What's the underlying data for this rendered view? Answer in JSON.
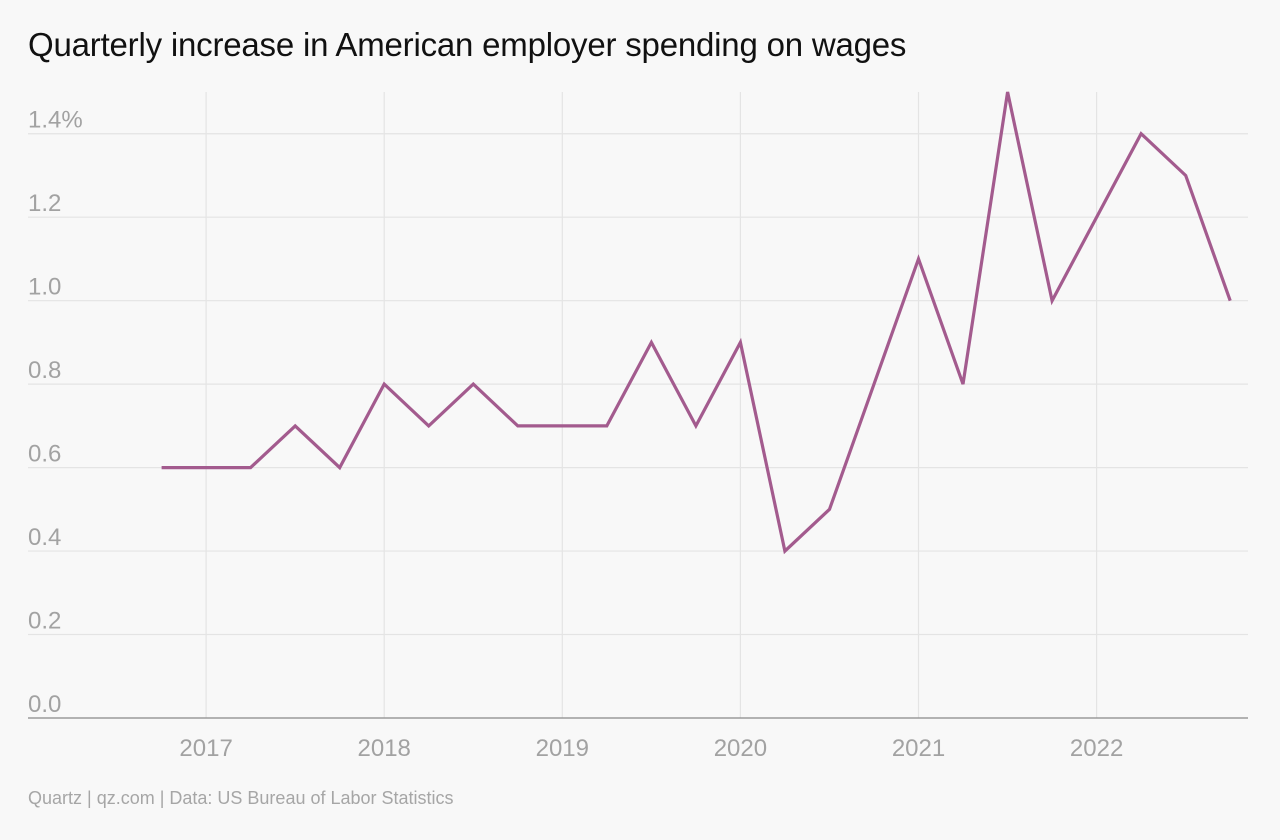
{
  "title": "Quarterly increase in American employer spending on wages",
  "source": "Quartz | qz.com | Data: US Bureau of Labor Statistics",
  "colors": {
    "line": "#a35b8e",
    "grid": "#e4e4e4",
    "tick_text": "#a2a2a2",
    "axis": "#9a9a9a",
    "background": "#f8f8f8"
  },
  "chart_data": {
    "type": "line",
    "title": "Quarterly increase in American employer spending on wages",
    "xlabel": "",
    "ylabel": "",
    "grid": true,
    "xlim": [
      2016.0,
      2022.85
    ],
    "ylim": [
      0,
      1.5
    ],
    "x_ticks": [
      2017,
      2018,
      2019,
      2020,
      2021,
      2022
    ],
    "x_tick_labels": [
      "2017",
      "2018",
      "2019",
      "2020",
      "2021",
      "2022"
    ],
    "y_ticks": [
      0,
      0.2,
      0.4,
      0.6,
      0.8,
      1.0,
      1.2,
      1.4
    ],
    "y_tick_labels": [
      "0.0",
      "0.2",
      "0.4",
      "0.6",
      "0.8",
      "1.0",
      "1.2",
      "1.4%"
    ],
    "series": [
      {
        "x": [
          "2016-Q4",
          "2017-Q1",
          "2017-Q2",
          "2017-Q3",
          "2017-Q4",
          "2018-Q1",
          "2018-Q2",
          "2018-Q3",
          "2018-Q4",
          "2019-Q1",
          "2019-Q2",
          "2019-Q3",
          "2019-Q4",
          "2020-Q1",
          "2020-Q2",
          "2020-Q3",
          "2020-Q4",
          "2021-Q1",
          "2021-Q2",
          "2021-Q3",
          "2021-Q4",
          "2022-Q1",
          "2022-Q2",
          "2022-Q3",
          "2022-Q4"
        ],
        "values": [
          0.6,
          0.6,
          0.6,
          0.7,
          0.6,
          0.8,
          0.7,
          0.8,
          0.7,
          0.7,
          0.7,
          0.9,
          0.7,
          0.9,
          0.4,
          0.5,
          0.8,
          1.1,
          0.8,
          1.5,
          1.0,
          1.2,
          1.4,
          1.3,
          1.0
        ]
      }
    ]
  }
}
